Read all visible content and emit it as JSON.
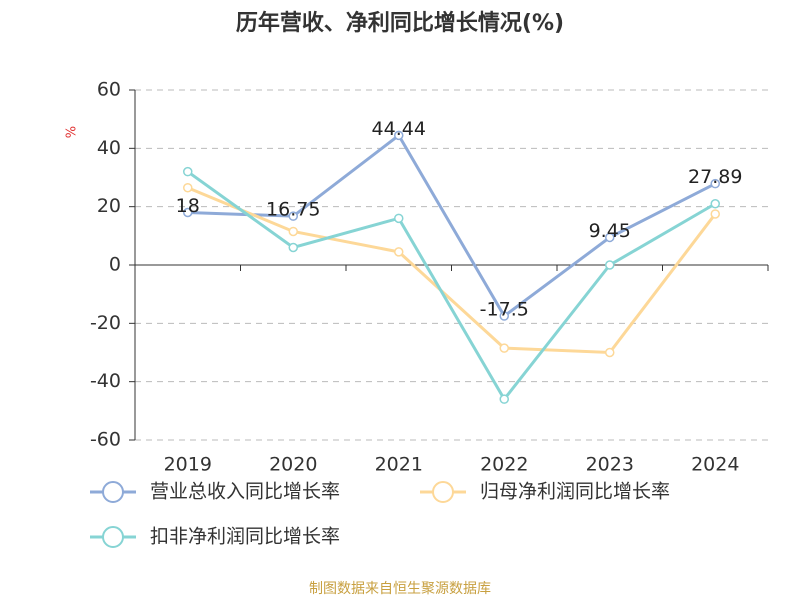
{
  "chart_data": {
    "type": "line",
    "title": "历年营收、净利同比增长情况(%)",
    "y_label": "%",
    "categories": [
      "2019",
      "2020",
      "2021",
      "2022",
      "2023",
      "2024"
    ],
    "series": [
      {
        "name": "营业总收入同比增长率",
        "color": "#8eaad8",
        "values": [
          18,
          16.75,
          44.44,
          -17.5,
          9.45,
          27.89
        ],
        "show_labels": true
      },
      {
        "name": "归母净利润同比增长率",
        "color": "#fdd898",
        "values": [
          26.5,
          11.5,
          4.5,
          -28.5,
          -30,
          17.5
        ],
        "show_labels": false
      },
      {
        "name": "扣非净利润同比增长率",
        "color": "#86d4d4",
        "values": [
          32,
          6,
          16,
          -46,
          0,
          21
        ],
        "show_labels": false
      }
    ],
    "ylim": [
      -60,
      60
    ],
    "yticks": [
      -60,
      -40,
      -20,
      0,
      20,
      40,
      60
    ],
    "grid": true,
    "legend": "bottom",
    "source": "制图数据来自恒生聚源数据库"
  }
}
